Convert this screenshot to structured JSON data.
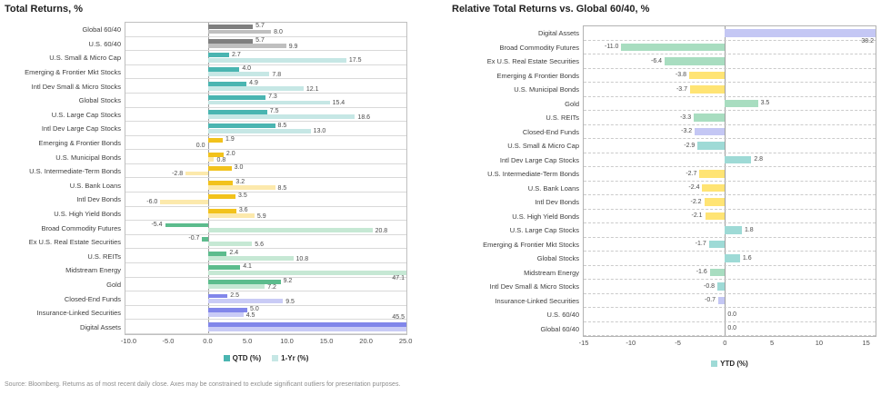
{
  "page": {
    "footer": "Source: Bloomberg. Returns as of most recent daily close. Axes may be constrained to exclude significant outliers for presentation purposes."
  },
  "palette": {
    "series1": {
      "blend": "#7f7f7f",
      "stocks": "#4ab5b1",
      "bonds": "#f2c21c",
      "real": "#5cbc8d",
      "alts": "#8186ea"
    },
    "series2": {
      "blend": "#bfbfbf",
      "stocks": "#c6e7e5",
      "bonds": "#fce9ac",
      "real": "#c6e8d4",
      "alts": "#c9cbf6"
    },
    "single": {
      "blend": "#bfbfbf",
      "stocks": "#9edad6",
      "bonds": "#ffe474",
      "real": "#a8ddc0",
      "alts": "#c4c7f4"
    }
  },
  "chart_data": [
    {
      "type": "bar",
      "orientation": "horizontal",
      "title": "Total Returns, %",
      "series_names": [
        "QTD (%)",
        "1-Yr (%)"
      ],
      "legend": [
        {
          "label": "QTD (%)",
          "swatch": "#4ab5b1"
        },
        {
          "label": "1-Yr (%)",
          "swatch": "#c6e7e5"
        }
      ],
      "axis": {
        "min": -10.4,
        "max": 25.1,
        "ticks": [
          -10,
          -5,
          0,
          5,
          10,
          15,
          20,
          25
        ],
        "tick_labels": [
          "-10.0",
          "-5.0",
          "0.0",
          "5.0",
          "10.0",
          "15.0",
          "20.0",
          "25.0"
        ]
      },
      "rows": [
        {
          "label": "Global 60/40",
          "group": "blend",
          "qtd": 5.7,
          "yr1": 8.0
        },
        {
          "label": "U.S. 60/40",
          "group": "blend",
          "qtd": 5.7,
          "yr1": 9.9
        },
        {
          "label": "U.S. Small & Micro Cap",
          "group": "stocks",
          "qtd": 2.7,
          "yr1": 17.5
        },
        {
          "label": "Emerging & Frontier Mkt Stocks",
          "group": "stocks",
          "qtd": 4.0,
          "yr1": 7.8
        },
        {
          "label": "Intl Dev Small & Micro Stocks",
          "group": "stocks",
          "qtd": 4.9,
          "yr1": 12.1
        },
        {
          "label": "Global Stocks",
          "group": "stocks",
          "qtd": 7.3,
          "yr1": 15.4
        },
        {
          "label": "U.S. Large Cap Stocks",
          "group": "stocks",
          "qtd": 7.5,
          "yr1": 18.6
        },
        {
          "label": "Intl Dev Large Cap Stocks",
          "group": "stocks",
          "qtd": 8.5,
          "yr1": 13.0
        },
        {
          "label": "Emerging & Frontier Bonds",
          "group": "bonds",
          "qtd": 1.9,
          "yr1": 0.0,
          "yr1_label_side": "left"
        },
        {
          "label": "U.S. Municipal Bonds",
          "group": "bonds",
          "qtd": 2.0,
          "yr1": 0.8
        },
        {
          "label": "U.S. Intermediate-Term Bonds",
          "group": "bonds",
          "qtd": 3.0,
          "yr1": -2.8
        },
        {
          "label": "U.S. Bank Loans",
          "group": "bonds",
          "qtd": 3.2,
          "yr1": 8.5
        },
        {
          "label": "Intl Dev Bonds",
          "group": "bonds",
          "qtd": 3.5,
          "yr1": -6.0
        },
        {
          "label": "U.S. High Yield Bonds",
          "group": "bonds",
          "qtd": 3.6,
          "yr1": 5.9
        },
        {
          "label": "Broad Commodity Futures",
          "group": "real",
          "qtd": -5.4,
          "yr1": 20.8
        },
        {
          "label": "Ex U.S. Real Estate Securities",
          "group": "real",
          "qtd": -0.7,
          "yr1": 5.6
        },
        {
          "label": "U.S. REITs",
          "group": "real",
          "qtd": 2.4,
          "yr1": 10.8
        },
        {
          "label": "Midstream Energy",
          "group": "real",
          "qtd": 4.1,
          "yr1": 47.1,
          "yr1_clipped": true
        },
        {
          "label": "Gold",
          "group": "real",
          "qtd": 9.2,
          "yr1": 7.2
        },
        {
          "label": "Closed-End Funds",
          "group": "alts",
          "qtd": 2.5,
          "yr1": 9.5
        },
        {
          "label": "Insurance-Linked Securities",
          "group": "alts",
          "qtd": 5.0,
          "yr1": 4.5
        },
        {
          "label": "Digital Assets",
          "group": "alts",
          "qtd": 45.5,
          "qtd_clipped": true,
          "yr1": null,
          "yr1_clipped": true
        }
      ]
    },
    {
      "type": "bar",
      "orientation": "horizontal",
      "title": "Relative Total Returns vs. Global 60/40, %",
      "series_names": [
        "YTD (%)"
      ],
      "legend": [
        {
          "label": "YTD (%)",
          "swatch": "#9edad6"
        }
      ],
      "axis": {
        "min": -15,
        "max": 16,
        "ticks": [
          -15,
          -10,
          -5,
          0,
          5,
          10,
          15
        ],
        "tick_labels": [
          "-15",
          "-10",
          "-5",
          "0",
          "5",
          "10",
          "15"
        ]
      },
      "rows": [
        {
          "label": "Digital Assets",
          "group": "alts",
          "ytd": 38.2,
          "clipped": true
        },
        {
          "label": "Broad Commodity Futures",
          "group": "real",
          "ytd": -11.0
        },
        {
          "label": "Ex U.S. Real Estate Securities",
          "group": "real",
          "ytd": -6.4
        },
        {
          "label": "Emerging & Frontier Bonds",
          "group": "bonds",
          "ytd": -3.8
        },
        {
          "label": "U.S. Municipal Bonds",
          "group": "bonds",
          "ytd": -3.7
        },
        {
          "label": "Gold",
          "group": "real",
          "ytd": 3.5
        },
        {
          "label": "U.S. REITs",
          "group": "real",
          "ytd": -3.3
        },
        {
          "label": "Closed-End Funds",
          "group": "alts",
          "ytd": -3.2
        },
        {
          "label": "U.S. Small & Micro Cap",
          "group": "stocks",
          "ytd": -2.9
        },
        {
          "label": "Intl Dev Large Cap Stocks",
          "group": "stocks",
          "ytd": 2.8
        },
        {
          "label": "U.S. Intermediate-Term Bonds",
          "group": "bonds",
          "ytd": -2.7
        },
        {
          "label": "U.S. Bank Loans",
          "group": "bonds",
          "ytd": -2.4
        },
        {
          "label": "Intl Dev Bonds",
          "group": "bonds",
          "ytd": -2.2
        },
        {
          "label": "U.S. High Yield Bonds",
          "group": "bonds",
          "ytd": -2.1
        },
        {
          "label": "U.S. Large Cap Stocks",
          "group": "stocks",
          "ytd": 1.8
        },
        {
          "label": "Emerging & Frontier Mkt Stocks",
          "group": "stocks",
          "ytd": -1.7
        },
        {
          "label": "Global Stocks",
          "group": "stocks",
          "ytd": 1.6
        },
        {
          "label": "Midstream Energy",
          "group": "real",
          "ytd": -1.6
        },
        {
          "label": "Intl Dev Small & Micro Stocks",
          "group": "stocks",
          "ytd": -0.8
        },
        {
          "label": "Insurance-Linked Securities",
          "group": "alts",
          "ytd": -0.7
        },
        {
          "label": "U.S. 60/40",
          "group": "blend",
          "ytd": 0.0
        },
        {
          "label": "Global 60/40",
          "group": "blend",
          "ytd": 0.0
        }
      ]
    }
  ]
}
